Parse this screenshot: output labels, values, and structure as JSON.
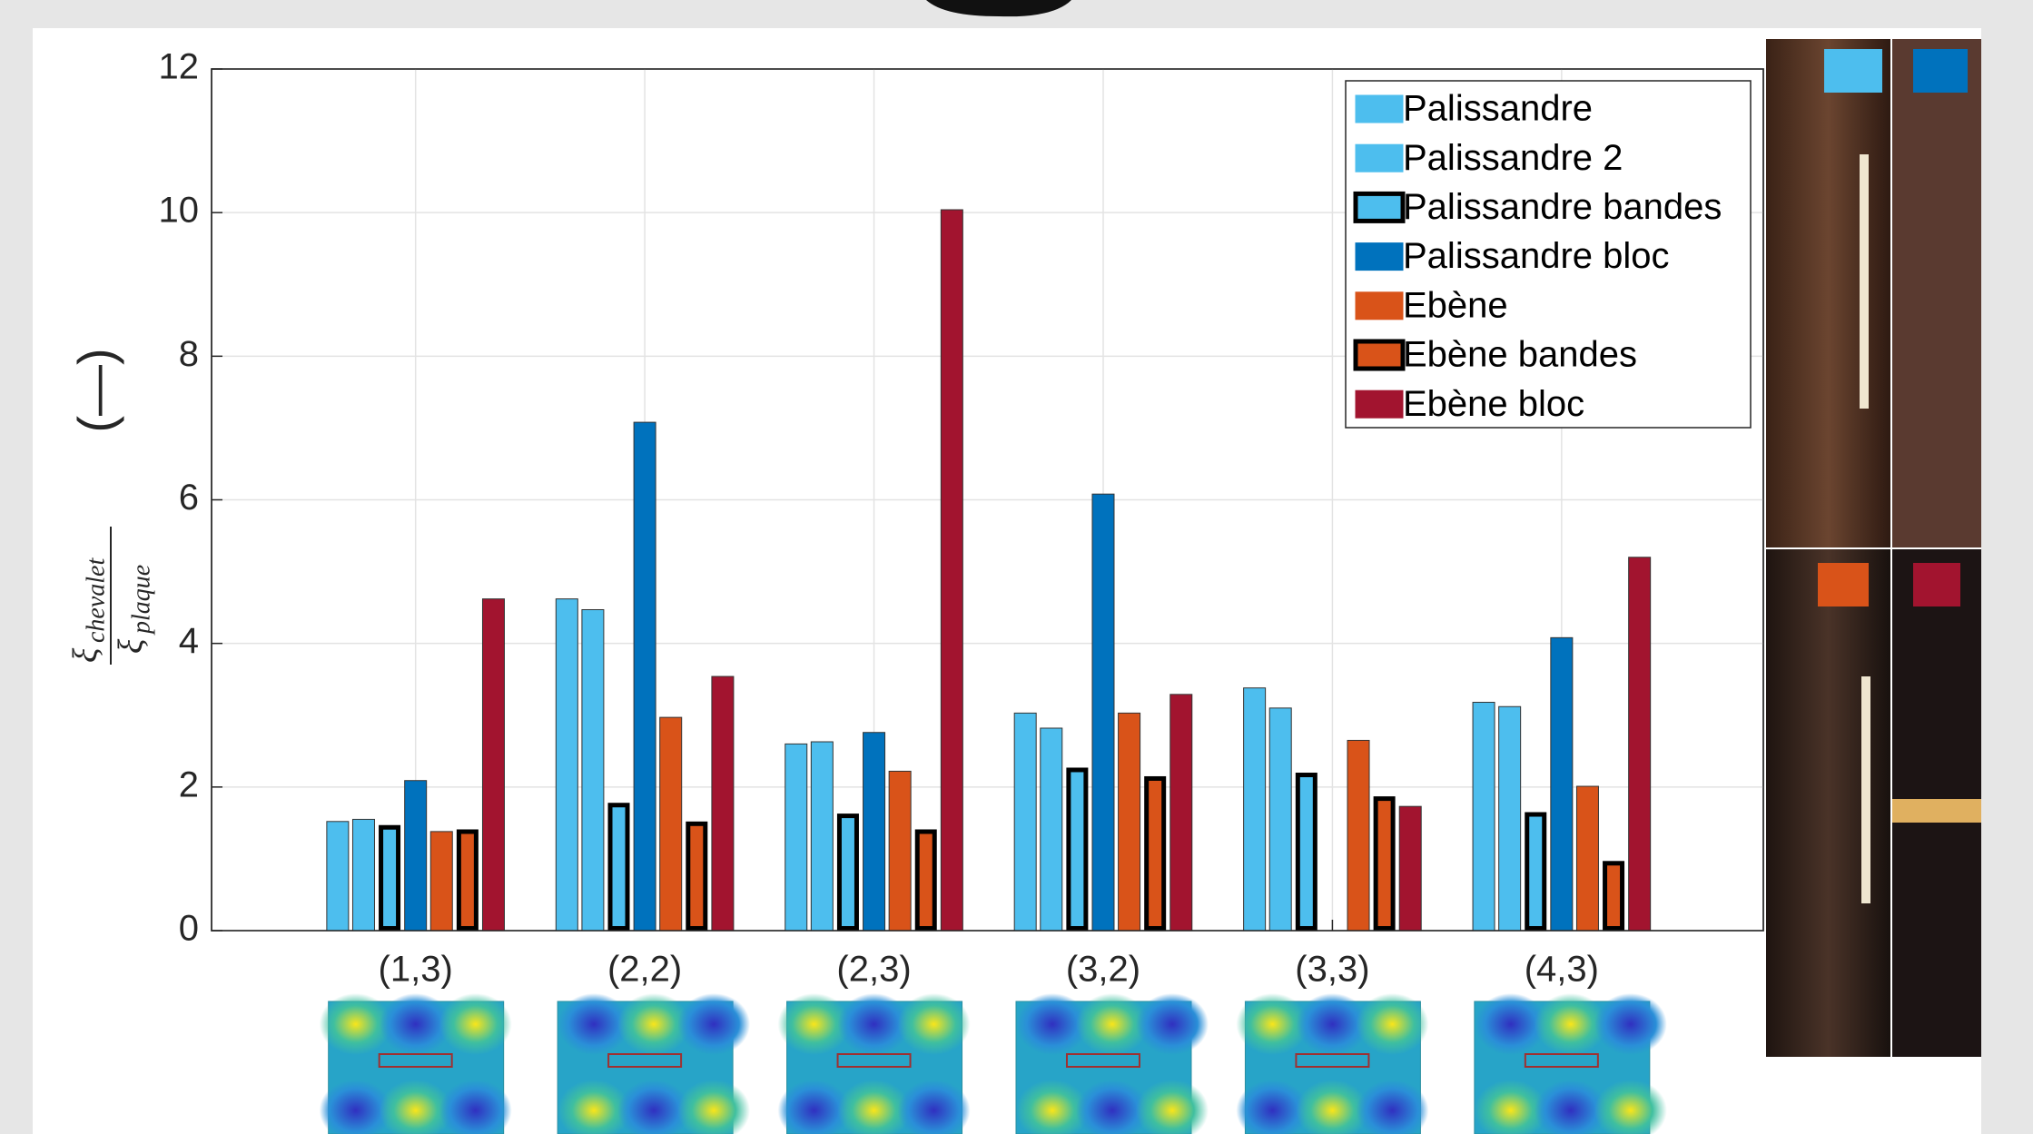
{
  "chart_data": {
    "type": "bar",
    "ylabel": {
      "symbol_top": "ξ",
      "sub_top": "chevalet",
      "symbol_bottom": "ξ",
      "sub_bottom": "plaque",
      "unit": "(—)"
    },
    "categories": [
      "(1,3)",
      "(2,2)",
      "(2,3)",
      "(3,2)",
      "(3,3)",
      "(4,3)"
    ],
    "series": [
      {
        "name": "Palissandre",
        "color": "#4dbeee",
        "edgecolor": "#333333",
        "values": [
          1.52,
          4.62,
          2.6,
          3.03,
          3.38,
          3.18
        ]
      },
      {
        "name": "Palissandre 2",
        "color": "#4dbeee",
        "edgecolor": "#333333",
        "values": [
          1.55,
          4.47,
          2.63,
          2.82,
          3.1,
          3.12
        ]
      },
      {
        "name": "Palissandre bandes",
        "color": "#4dbeee",
        "edgecolor": "#000000",
        "values": [
          1.47,
          1.78,
          1.63,
          2.27,
          2.2,
          1.65
        ]
      },
      {
        "name": "Palissandre bloc",
        "color": "#0072bd",
        "edgecolor": "#333333",
        "values": [
          2.09,
          7.08,
          2.76,
          6.08,
          null,
          4.08
        ]
      },
      {
        "name": "Ebène",
        "color": "#d95319",
        "edgecolor": "#333333",
        "values": [
          1.38,
          2.97,
          2.22,
          3.03,
          2.65,
          2.01
        ]
      },
      {
        "name": "Ebène bandes",
        "color": "#d95319",
        "edgecolor": "#000000",
        "values": [
          1.41,
          1.52,
          1.41,
          2.15,
          1.87,
          0.97
        ]
      },
      {
        "name": "Ebène bloc",
        "color": "#a2142f",
        "edgecolor": "#333333",
        "values": [
          4.62,
          3.54,
          10.04,
          3.29,
          1.73,
          5.2
        ]
      }
    ],
    "ylim": [
      0,
      12
    ],
    "yticks": [
      0,
      2,
      4,
      6,
      8,
      10,
      12
    ],
    "grid": true,
    "legend": "upper right"
  }
}
